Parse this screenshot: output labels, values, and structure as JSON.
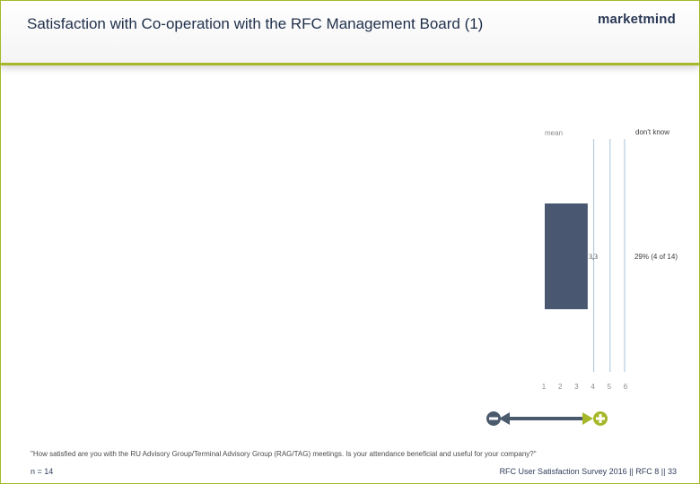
{
  "header": {
    "title": "Satisfaction with Co-operation with the RFC Management Board (1)",
    "logo_text": "marketmind"
  },
  "chart_data": {
    "type": "bar",
    "mean_label": "mean",
    "dont_know_label": "don't know",
    "scale_ticks": [
      "1",
      "2",
      "3",
      "4",
      "5",
      "6"
    ],
    "xlim": [
      1,
      6
    ],
    "mean_value": 3.3,
    "mean_value_label": "3,3",
    "dont_know_value_label": "29% (4 of 14)",
    "colors": {
      "bar": "#495770",
      "accent": "#a6b82a",
      "guide": "#a9c3d9",
      "scale_arrow": "#4a5a6c"
    }
  },
  "footer": {
    "question": "\"How satisfied are you with the RU Advisory Group/Terminal Advisory Group (RAG/TAG) meetings. Is your attendance beneficial and useful for your company?\"",
    "sample_size": "n = 14",
    "source": "RFC User Satisfaction Survey 2016 || RFC 8 || 33"
  }
}
